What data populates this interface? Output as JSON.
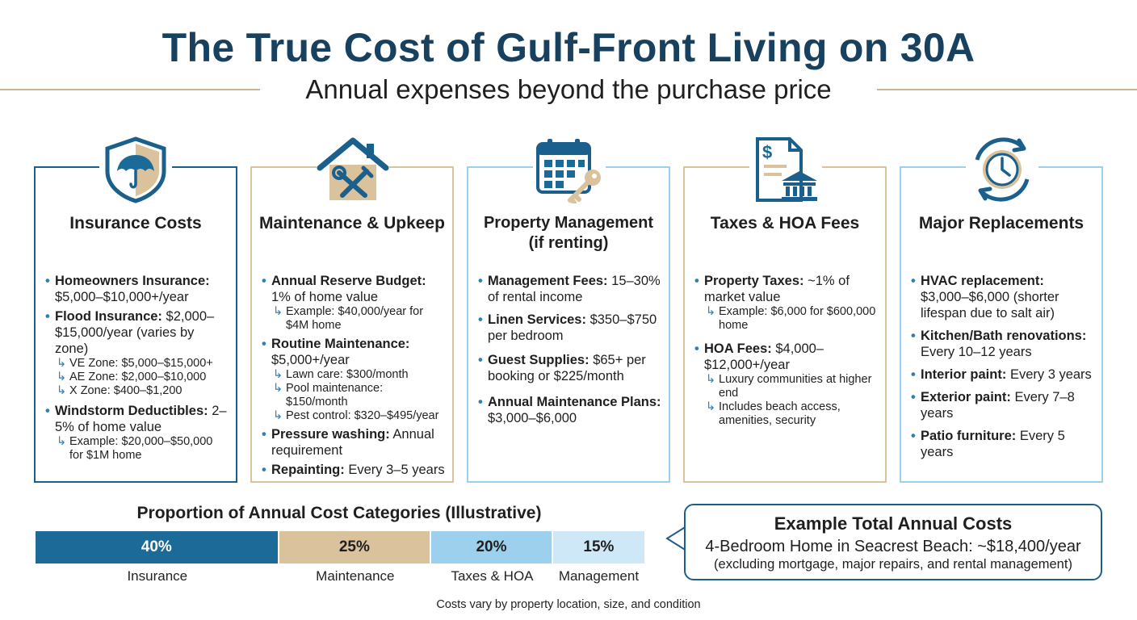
{
  "header": {
    "title": "The True Cost of Gulf-Front Living on 30A",
    "subtitle": "Annual expenses beyond the purchase price"
  },
  "cards": [
    {
      "icon": "shield-umbrella-icon",
      "title": "Insurance Costs",
      "items": [
        {
          "label": "Homeowners Insurance:",
          "text": "$5,000–$10,000+/year",
          "subs": []
        },
        {
          "label": "Flood Insurance:",
          "text": "$2,000–$15,000/year (varies by zone)",
          "subs": [
            "VE Zone: $5,000–$15,000+",
            "AE Zone: $2,000–$10,000",
            "X Zone: $400–$1,200"
          ]
        },
        {
          "label": "Windstorm Deductibles:",
          "text": "2–5% of home value",
          "subs": [
            "Example: $20,000–$50,000 for $1M home"
          ]
        }
      ]
    },
    {
      "icon": "house-tools-icon",
      "title": "Maintenance & Upkeep",
      "items": [
        {
          "label": "Annual Reserve Budget:",
          "text": "1% of home value",
          "subs": [
            "Example: $40,000/year for $4M home"
          ]
        },
        {
          "label": "Routine Maintenance:",
          "text": "$5,000+/year",
          "subs": [
            "Lawn care: $300/month",
            "Pool maintenance: $150/month",
            "Pest control: $320–$495/year"
          ]
        },
        {
          "label": "Pressure washing:",
          "text": "Annual requirement",
          "subs": []
        },
        {
          "label": "Repainting:",
          "text": "Every 3–5 years",
          "subs": []
        }
      ]
    },
    {
      "icon": "calendar-key-icon",
      "title": "Property Management (if renting)",
      "items": [
        {
          "label": "Management Fees:",
          "text": "15–30% of rental income",
          "subs": []
        },
        {
          "label": "Linen Services:",
          "text": "$350–$750 per bedroom",
          "subs": []
        },
        {
          "label": "Guest Supplies:",
          "text": "$65+ per booking or $225/month",
          "subs": []
        },
        {
          "label": "Annual Maintenance Plans:",
          "text": "$3,000–$6,000",
          "subs": []
        }
      ]
    },
    {
      "icon": "tax-document-bank-icon",
      "title": "Taxes & HOA Fees",
      "items": [
        {
          "label": "Property Taxes:",
          "text": "~1% of market value",
          "subs": [
            "Example: $6,000 for $600,000 home"
          ]
        },
        {
          "label": "HOA Fees:",
          "text": "$4,000–$12,000+/year",
          "subs": [
            "Luxury communities at higher end",
            "Includes beach access, amenities, security"
          ]
        }
      ]
    },
    {
      "icon": "clock-cycle-icon",
      "title": "Major Replacements",
      "items": [
        {
          "label": "HVAC replacement:",
          "text": "$3,000–$6,000 (shorter lifespan due to salt air)",
          "subs": []
        },
        {
          "label": "Kitchen/Bath renovations:",
          "text": "Every 10–12 years",
          "subs": []
        },
        {
          "label": "Interior paint:",
          "text": "Every 3 years",
          "subs": []
        },
        {
          "label": "Exterior paint:",
          "text": "Every 7–8 years",
          "subs": []
        },
        {
          "label": "Patio furniture:",
          "text": "Every 5 years",
          "subs": []
        }
      ]
    }
  ],
  "colors": {
    "navy": "#17415f",
    "blue": "#1b6a97",
    "tan": "#d9c29c",
    "light_blue": "#9dd0ec",
    "pale_blue": "#cfe8f7"
  },
  "chart_data": {
    "type": "bar",
    "orientation": "horizontal-stacked",
    "title": "Proportion of Annual Cost Categories (Illustrative)",
    "categories": [
      "Insurance",
      "Maintenance",
      "Taxes & HOA",
      "Management"
    ],
    "values": [
      40,
      25,
      20,
      15
    ],
    "value_labels": [
      "40%",
      "25%",
      "20%",
      "15%"
    ],
    "colors": [
      "#1b6a97",
      "#d9c29c",
      "#9dd0ec",
      "#cfe8f7"
    ],
    "text_colors": [
      "#ffffff",
      "#1f1f1f",
      "#1f1f1f",
      "#1f1f1f"
    ]
  },
  "total": {
    "title": "Example Total Annual Costs",
    "line1": "4-Bedroom Home in Seacrest Beach: ~$18,400/year",
    "line2": "(excluding mortgage, major repairs, and rental management)"
  },
  "footnote": "Costs vary by property location, size, and condition"
}
